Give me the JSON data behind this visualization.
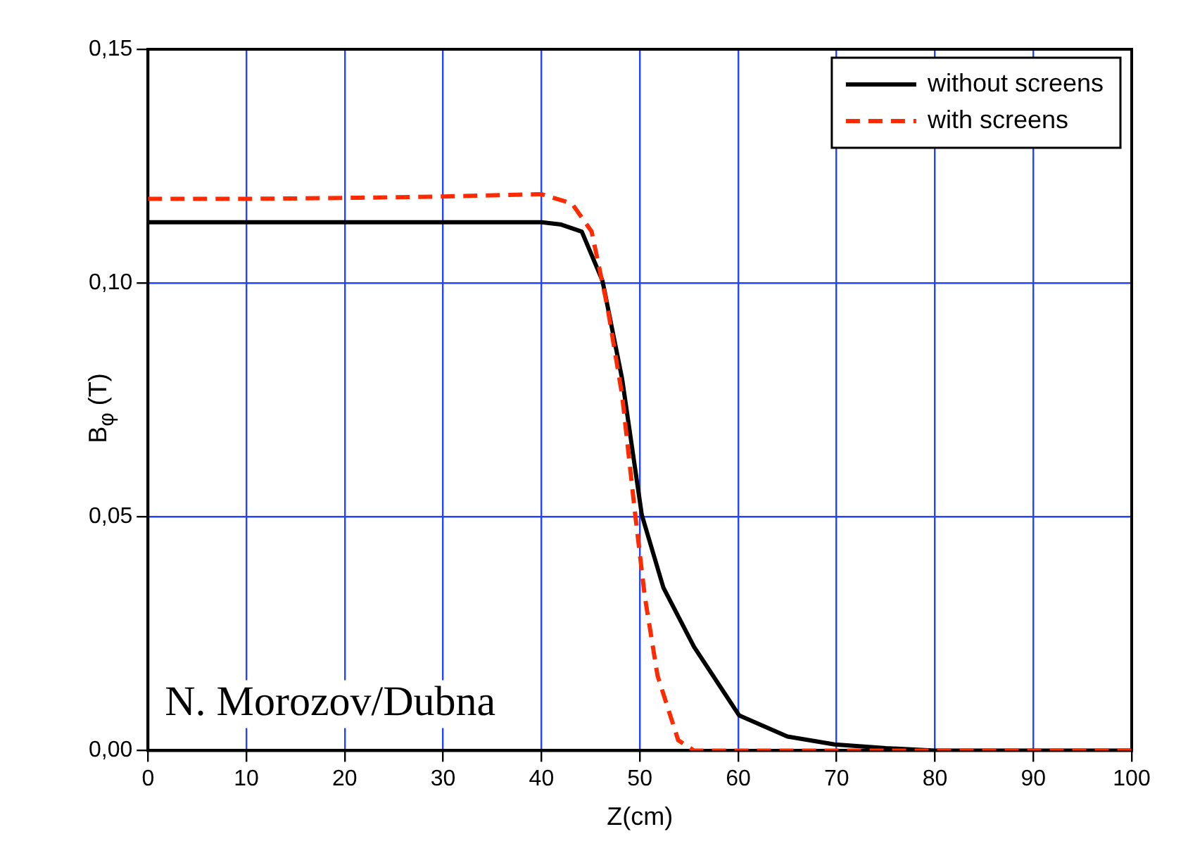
{
  "chart_data": {
    "type": "line",
    "xlabel": "Z(cm)",
    "ylabel": "B$_{φ}$ (T)",
    "xlim": [
      0,
      100
    ],
    "xticks": [
      0,
      10,
      20,
      30,
      40,
      50,
      60,
      70,
      80,
      90,
      100
    ],
    "ylim": [
      0,
      0.15
    ],
    "yticks": [
      {
        "value": 0,
        "label": "0,00"
      },
      {
        "value": 0.05,
        "label": "0,05"
      },
      {
        "value": 0.1,
        "label": "0,10"
      },
      {
        "value": 0.15,
        "label": "0,15"
      }
    ],
    "grid": true,
    "legend": "top right",
    "marker": "none",
    "annotations": [
      "N. Morozov/Dubna"
    ],
    "series": [
      {
        "name": "without screens",
        "color": "#000000",
        "line_style": "solid",
        "x": [
          0,
          10,
          20,
          30,
          40,
          42,
          44.1,
          46.2,
          48.2,
          50.2,
          52.4,
          55.5,
          60.1,
          65,
          69.8,
          75,
          80,
          90,
          100
        ],
        "values": [
          0.113,
          0.113,
          0.113,
          0.113,
          0.113,
          0.1125,
          0.111,
          0.1005,
          0.0795,
          0.0504,
          0.0348,
          0.0222,
          0.0075,
          0.003,
          0.0013,
          0.0005,
          0,
          0,
          0
        ]
      },
      {
        "name": "with screens",
        "color": "#ff2a00",
        "line_style": "dashed",
        "x": [
          0,
          10,
          20,
          30,
          40,
          43.1,
          45.1,
          46.7,
          48.2,
          49.5,
          50.5,
          51.8,
          53.9,
          55.5,
          60,
          70,
          80,
          90,
          100
        ],
        "values": [
          0.118,
          0.118,
          0.1182,
          0.1185,
          0.119,
          0.117,
          0.111,
          0.095,
          0.076,
          0.051,
          0.033,
          0.016,
          0.0022,
          0,
          0,
          0,
          0,
          0,
          0
        ]
      }
    ]
  }
}
